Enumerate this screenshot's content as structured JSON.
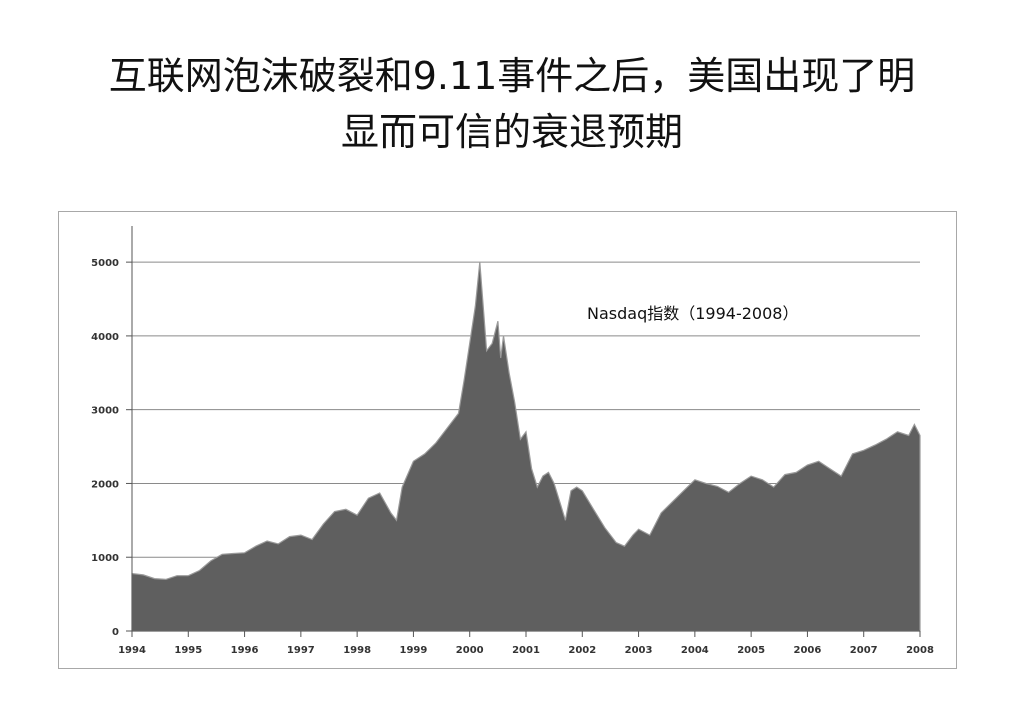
{
  "slide": {
    "title_line1": "互联网泡沫破裂和9.11事件之后，美国出现了明",
    "title_line2": "显而可信的衰退预期"
  },
  "chart_data": {
    "type": "area",
    "title": "Nasdaq指数（1994-2008）",
    "xlabel": "",
    "ylabel": "",
    "x_ticks": [
      "1994",
      "1995",
      "1996",
      "1997",
      "1998",
      "1999",
      "2000",
      "2001",
      "2002",
      "2003",
      "2004",
      "2005",
      "2006",
      "2007",
      "2008"
    ],
    "y_ticks": [
      0,
      1000,
      2000,
      3000,
      4000,
      5000
    ],
    "ylim": [
      0,
      5300
    ],
    "xlim": [
      1994,
      2008
    ],
    "grid": "horizontal",
    "fill_color": "#5f5f5f",
    "series": [
      {
        "x": [
          1994.0,
          1994.2,
          1994.4,
          1994.6,
          1994.8,
          1995.0,
          1995.2,
          1995.4,
          1995.6,
          1995.8,
          1996.0,
          1996.2,
          1996.4,
          1996.6,
          1996.8,
          1997.0,
          1997.2,
          1997.4,
          1997.6,
          1997.8,
          1998.0,
          1998.2,
          1998.4,
          1998.6,
          1998.7,
          1998.8,
          1999.0,
          1999.2,
          1999.4,
          1999.6,
          1999.8,
          1999.9,
          2000.0,
          2000.1,
          2000.18,
          2000.25,
          2000.3,
          2000.4,
          2000.5,
          2000.55,
          2000.6,
          2000.7,
          2000.8,
          2000.9,
          2001.0,
          2001.1,
          2001.2,
          2001.3,
          2001.4,
          2001.5,
          2001.6,
          2001.7,
          2001.8,
          2001.9,
          2002.0,
          2002.2,
          2002.4,
          2002.6,
          2002.75,
          2002.9,
          2003.0,
          2003.2,
          2003.4,
          2003.6,
          2003.8,
          2004.0,
          2004.2,
          2004.4,
          2004.6,
          2004.8,
          2005.0,
          2005.2,
          2005.4,
          2005.6,
          2005.8,
          2006.0,
          2006.2,
          2006.4,
          2006.6,
          2006.8,
          2007.0,
          2007.2,
          2007.4,
          2007.6,
          2007.8,
          2007.9,
          2008.0
        ],
        "values": [
          780,
          760,
          710,
          700,
          750,
          750,
          820,
          950,
          1040,
          1050,
          1060,
          1150,
          1220,
          1180,
          1280,
          1300,
          1240,
          1450,
          1620,
          1650,
          1570,
          1800,
          1870,
          1600,
          1500,
          1950,
          2300,
          2400,
          2550,
          2750,
          2950,
          3400,
          3900,
          4400,
          5000,
          4300,
          3800,
          3900,
          4200,
          3700,
          4000,
          3500,
          3100,
          2600,
          2700,
          2200,
          1950,
          2100,
          2150,
          2000,
          1750,
          1500,
          1900,
          1950,
          1900,
          1650,
          1400,
          1200,
          1150,
          1300,
          1380,
          1300,
          1600,
          1750,
          1900,
          2050,
          2000,
          1960,
          1880,
          2000,
          2100,
          2050,
          1950,
          2120,
          2150,
          2250,
          2300,
          2200,
          2100,
          2400,
          2450,
          2520,
          2600,
          2700,
          2650,
          2800,
          2650
        ]
      }
    ]
  }
}
